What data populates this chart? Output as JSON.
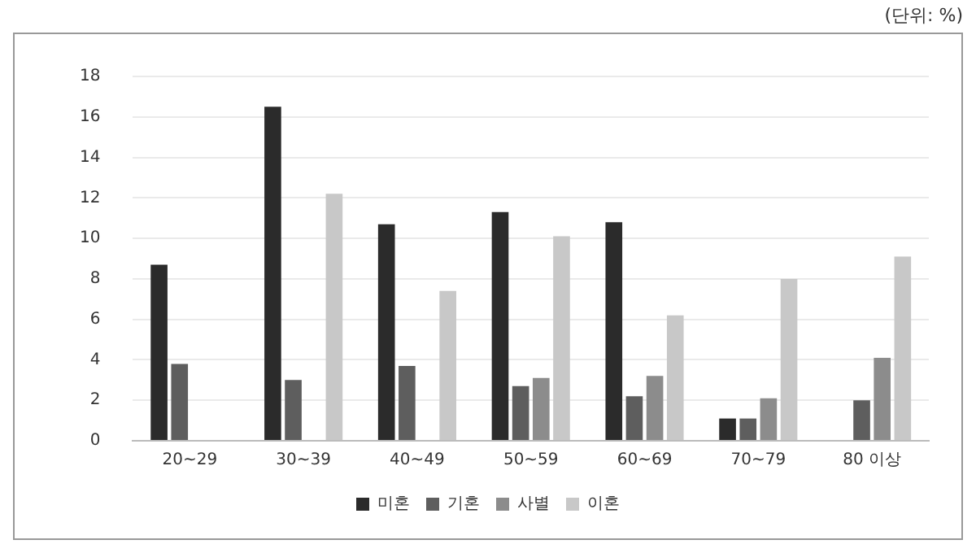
{
  "chart_data": {
    "type": "bar",
    "annotations": [
      "(단위: %)"
    ],
    "categories": [
      "20~29",
      "30~39",
      "40~49",
      "50~59",
      "60~69",
      "70~79",
      "80 이상"
    ],
    "series": [
      {
        "name": "미혼",
        "color": "#2b2b2b",
        "values": [
          8.7,
          16.5,
          10.7,
          11.3,
          10.8,
          1.1,
          null
        ]
      },
      {
        "name": "기혼",
        "color": "#5e5e5e",
        "values": [
          3.8,
          3.0,
          3.7,
          2.7,
          2.2,
          1.1,
          2.0
        ]
      },
      {
        "name": "사별",
        "color": "#8c8c8c",
        "values": [
          null,
          null,
          null,
          3.1,
          3.2,
          2.1,
          4.1
        ]
      },
      {
        "name": "이혼",
        "color": "#c8c8c8",
        "values": [
          null,
          12.2,
          7.4,
          10.1,
          6.2,
          8.0,
          9.1
        ]
      }
    ],
    "ylim": [
      0,
      18
    ],
    "yticks": [
      0,
      2,
      4,
      6,
      8,
      10,
      12,
      14,
      16,
      18
    ],
    "grid": "y",
    "legend": "bottom"
  }
}
